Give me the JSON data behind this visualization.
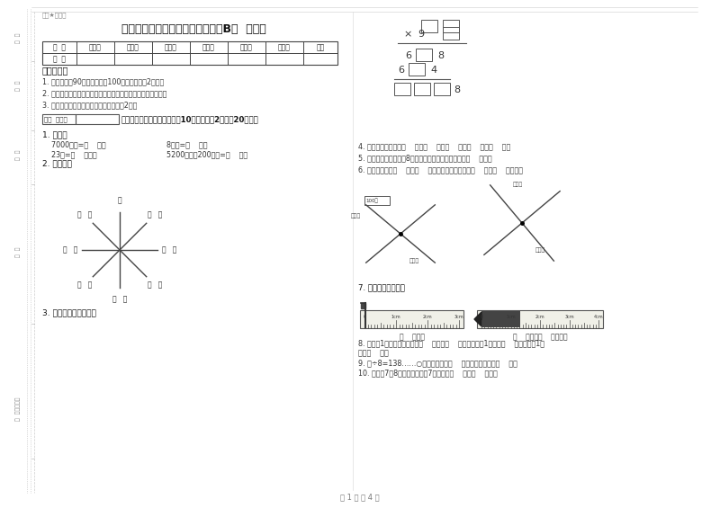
{
  "title": "湘教版三年级数学下学期月考试卷B卷  附答案",
  "watermark": "做密★启用前",
  "page_footer": "第 1 页 共 4 页",
  "table_headers": [
    "题  号",
    "填空题",
    "选择题",
    "判断题",
    "计算题",
    "综合题",
    "应用题",
    "总分"
  ],
  "table_row": [
    "得  分",
    "",
    "",
    "",
    "",
    "",
    "",
    ""
  ],
  "notice_title": "考试须知：",
  "notices": [
    "1. 考试时间：90分钟，满分为100分（含卷面分2分）。",
    "2. 请首先按要求在试卷的指定位置填写您的姓名、班级、学号。",
    "3. 不要在试卷上乱写乱画，卷面不整洁扣2分。"
  ],
  "score_label": "得分  评卷人",
  "section_title": "一、用心思考，正确填空（共10小题，每题2分，共20分）。",
  "q1_title": "1. 换算。",
  "q1_a": "7000千克=（    ）吨",
  "q1_b": "8千克=（    ）克",
  "q1_c": "23吨=（    ）千克",
  "q1_d": "5200千克－200千克=（    ）吨",
  "q2_title": "2. 填一填。",
  "q3_title": "3. 在里填上适当的数。",
  "q4_text": "4. 常用的长度单位有（    ）、（    ）、（    ）、（    ）、（    ）。",
  "q5_text": "5. 小明从一楼到三楼用8秒，照这样他从一楼到五楼用（    ）秒。",
  "q6_text": "6. 小红家在学校（    ）方（    ）米处；小明家在学校（    ）方（    ）米处。",
  "q7_text": "7. 量出钉子的长度。",
  "q8_text": "8. 分针走1小格，秒针正好走（    ），是（    ）秒，分针走1大格是（    ），时针走1大",
  "q8_text2": "格是（    ）。",
  "q9_text": "9. 口÷8=138……○，余数最大值（    ）；这时被除数是（    ）。",
  "q10_text": "10. 时针在7和8之间，分针指向7，这时是（    ）时（    ）分。",
  "ruler1_label": "（    ）毫米",
  "ruler2_label": "（    ）厘米（    ）毫米。",
  "compass_north": "北",
  "compass_blanks": [
    "（   ）",
    "（   ）",
    "（   ）",
    "（   ）",
    "（   ）",
    "（   ）",
    "（   ）",
    "（   ）"
  ],
  "map1_scale": "100米",
  "map1_label1": "小红家",
  "map1_label2": "小明家",
  "map2_label1": "小明家",
  "map2_label2": "小红家",
  "bg_color": "#ffffff"
}
